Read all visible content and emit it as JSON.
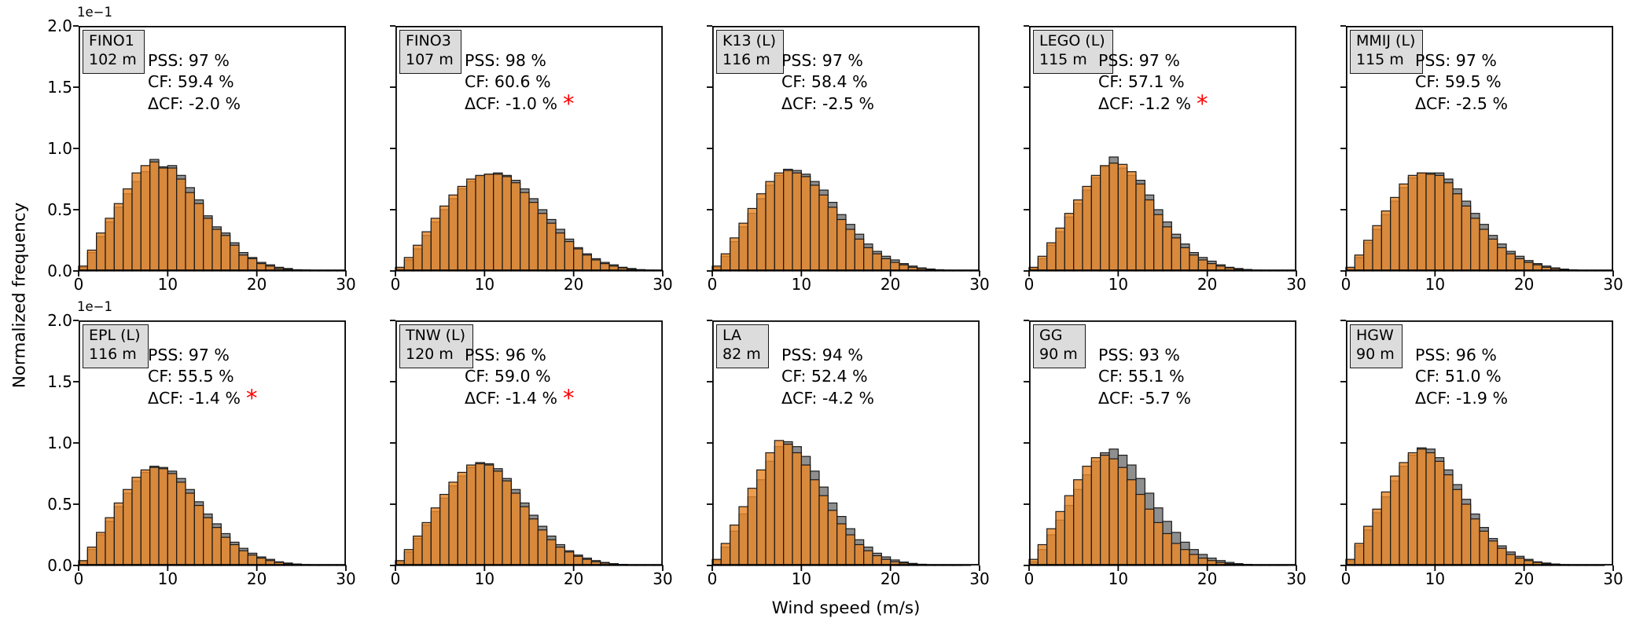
{
  "figure": {
    "xlabel": "Wind speed (m/s)",
    "ylabel": "Normalized frequency",
    "colors": {
      "orange_fill": "#E8872A",
      "gray_fill": "#8F8F8F",
      "bar_edge": "#1a1a1a",
      "asterisk_red": "#FF0000",
      "station_box_bg": "#DCDCDC"
    }
  },
  "chart_data": {
    "type": "bar",
    "subtype": "overlaid-histograms",
    "bin_start": 0,
    "bin_width": 1,
    "n_bins": 30,
    "xlim": [
      0,
      30
    ],
    "ylim": [
      0,
      2.0
    ],
    "xticks": [
      "0",
      "10",
      "20",
      "30"
    ],
    "yticks": [
      "0.0",
      "0.5",
      "1.0",
      "1.5",
      "2.0"
    ],
    "ytick_values": [
      0.0,
      0.5,
      1.0,
      1.5,
      2.0
    ],
    "y_offset_factor": "1e−1",
    "series_names": [
      "gray",
      "orange"
    ],
    "panels": [
      {
        "station": "FINO1",
        "height_label": "102 m",
        "pss": "PSS: 97 %",
        "cf": "CF: 59.4 %",
        "dcf": "ΔCF: -2.0 %",
        "asterisk": "",
        "gray": [
          0.03,
          0.15,
          0.28,
          0.4,
          0.52,
          0.63,
          0.73,
          0.81,
          0.91,
          0.85,
          0.86,
          0.78,
          0.68,
          0.58,
          0.45,
          0.36,
          0.31,
          0.23,
          0.15,
          0.11,
          0.07,
          0.05,
          0.03,
          0.02,
          0.01,
          0.008,
          0.005,
          0.003,
          0.002,
          0.001
        ],
        "orange": [
          0.04,
          0.17,
          0.31,
          0.43,
          0.55,
          0.67,
          0.8,
          0.86,
          0.89,
          0.84,
          0.84,
          0.75,
          0.64,
          0.55,
          0.43,
          0.34,
          0.29,
          0.21,
          0.13,
          0.1,
          0.06,
          0.04,
          0.02,
          0.015,
          0.009,
          0.006,
          0.004,
          0.002,
          0.001,
          0.001
        ]
      },
      {
        "station": "FINO3",
        "height_label": "107 m",
        "pss": "PSS: 98 %",
        "cf": "CF: 60.6 %",
        "dcf": "ΔCF: -1.0 %",
        "asterisk": "*",
        "gray": [
          0.02,
          0.09,
          0.18,
          0.29,
          0.4,
          0.5,
          0.59,
          0.67,
          0.73,
          0.77,
          0.79,
          0.8,
          0.78,
          0.74,
          0.67,
          0.59,
          0.5,
          0.42,
          0.34,
          0.26,
          0.19,
          0.14,
          0.1,
          0.07,
          0.05,
          0.03,
          0.02,
          0.011,
          0.007,
          0.004
        ],
        "orange": [
          0.03,
          0.11,
          0.21,
          0.32,
          0.43,
          0.53,
          0.62,
          0.69,
          0.75,
          0.78,
          0.79,
          0.79,
          0.77,
          0.72,
          0.64,
          0.56,
          0.47,
          0.39,
          0.31,
          0.24,
          0.18,
          0.13,
          0.09,
          0.06,
          0.04,
          0.025,
          0.015,
          0.009,
          0.005,
          0.003
        ]
      },
      {
        "station": "K13 (L)",
        "height_label": "116 m",
        "pss": "PSS: 97 %",
        "cf": "CF: 58.4 %",
        "dcf": "ΔCF: -2.5 %",
        "asterisk": "",
        "gray": [
          0.03,
          0.12,
          0.24,
          0.36,
          0.47,
          0.59,
          0.7,
          0.78,
          0.83,
          0.82,
          0.79,
          0.73,
          0.66,
          0.56,
          0.46,
          0.38,
          0.3,
          0.22,
          0.16,
          0.12,
          0.09,
          0.06,
          0.04,
          0.025,
          0.016,
          0.01,
          0.006,
          0.004,
          0.002,
          0.001
        ],
        "orange": [
          0.04,
          0.14,
          0.27,
          0.39,
          0.51,
          0.63,
          0.73,
          0.8,
          0.82,
          0.8,
          0.77,
          0.7,
          0.62,
          0.52,
          0.42,
          0.34,
          0.26,
          0.19,
          0.14,
          0.1,
          0.07,
          0.05,
          0.03,
          0.02,
          0.013,
          0.008,
          0.005,
          0.003,
          0.002,
          0.001
        ]
      },
      {
        "station": "LEGO (L)",
        "height_label": "115 m",
        "pss": "PSS: 97 %",
        "cf": "CF: 57.1 %",
        "dcf": "ΔCF: -1.2 %",
        "asterisk": "*",
        "gray": [
          0.02,
          0.1,
          0.21,
          0.32,
          0.44,
          0.55,
          0.66,
          0.76,
          0.85,
          0.93,
          0.84,
          0.78,
          0.74,
          0.62,
          0.5,
          0.4,
          0.3,
          0.22,
          0.15,
          0.11,
          0.08,
          0.05,
          0.03,
          0.02,
          0.012,
          0.007,
          0.004,
          0.002,
          0.001,
          0.001
        ],
        "orange": [
          0.03,
          0.12,
          0.23,
          0.35,
          0.47,
          0.58,
          0.69,
          0.78,
          0.86,
          0.88,
          0.87,
          0.81,
          0.71,
          0.58,
          0.46,
          0.36,
          0.27,
          0.19,
          0.13,
          0.09,
          0.06,
          0.04,
          0.025,
          0.015,
          0.009,
          0.005,
          0.003,
          0.002,
          0.001,
          0.001
        ]
      },
      {
        "station": "MMIJ (L)",
        "height_label": "115 m",
        "pss": "PSS: 97 %",
        "cf": "CF: 59.5 %",
        "dcf": "ΔCF: -2.5 %",
        "asterisk": "",
        "gray": [
          0.025,
          0.11,
          0.23,
          0.34,
          0.46,
          0.57,
          0.68,
          0.76,
          0.8,
          0.8,
          0.8,
          0.75,
          0.67,
          0.57,
          0.47,
          0.38,
          0.29,
          0.22,
          0.16,
          0.12,
          0.085,
          0.06,
          0.04,
          0.025,
          0.015,
          0.009,
          0.005,
          0.003,
          0.002,
          0.001
        ],
        "orange": [
          0.03,
          0.13,
          0.25,
          0.37,
          0.49,
          0.6,
          0.71,
          0.78,
          0.8,
          0.79,
          0.78,
          0.72,
          0.63,
          0.53,
          0.43,
          0.34,
          0.26,
          0.19,
          0.14,
          0.1,
          0.07,
          0.05,
          0.03,
          0.02,
          0.012,
          0.007,
          0.004,
          0.002,
          0.001,
          0.001
        ]
      },
      {
        "station": "EPL (L)",
        "height_label": "116 m",
        "pss": "PSS: 97 %",
        "cf": "CF: 55.5 %",
        "dcf": "ΔCF: -1.4 %",
        "asterisk": "*",
        "gray": [
          0.03,
          0.13,
          0.25,
          0.36,
          0.48,
          0.59,
          0.69,
          0.76,
          0.81,
          0.8,
          0.77,
          0.71,
          0.62,
          0.52,
          0.42,
          0.34,
          0.26,
          0.19,
          0.14,
          0.1,
          0.07,
          0.05,
          0.03,
          0.02,
          0.012,
          0.007,
          0.004,
          0.002,
          0.001,
          0.001
        ],
        "orange": [
          0.04,
          0.15,
          0.27,
          0.39,
          0.51,
          0.62,
          0.72,
          0.78,
          0.8,
          0.79,
          0.75,
          0.68,
          0.59,
          0.49,
          0.39,
          0.31,
          0.23,
          0.17,
          0.12,
          0.085,
          0.06,
          0.04,
          0.025,
          0.015,
          0.009,
          0.005,
          0.003,
          0.002,
          0.001,
          0.001
        ]
      },
      {
        "station": "TNW (L)",
        "height_label": "120 m",
        "pss": "PSS: 96 %",
        "cf": "CF: 59.0 %",
        "dcf": "ΔCF: -1.4 %",
        "asterisk": "*",
        "gray": [
          0.03,
          0.11,
          0.22,
          0.33,
          0.44,
          0.55,
          0.65,
          0.73,
          0.8,
          0.84,
          0.83,
          0.79,
          0.71,
          0.62,
          0.51,
          0.41,
          0.32,
          0.24,
          0.17,
          0.12,
          0.085,
          0.06,
          0.04,
          0.025,
          0.015,
          0.009,
          0.005,
          0.003,
          0.002,
          0.001
        ],
        "orange": [
          0.04,
          0.13,
          0.24,
          0.35,
          0.47,
          0.58,
          0.68,
          0.76,
          0.82,
          0.83,
          0.82,
          0.77,
          0.69,
          0.59,
          0.48,
          0.38,
          0.29,
          0.21,
          0.15,
          0.11,
          0.075,
          0.05,
          0.03,
          0.02,
          0.012,
          0.007,
          0.004,
          0.002,
          0.001,
          0.001
        ]
      },
      {
        "station": "LA",
        "height_label": "82 m",
        "pss": "PSS: 94 %",
        "cf": "CF: 52.4 %",
        "dcf": "ΔCF: -4.2 %",
        "asterisk": "",
        "gray": [
          0.04,
          0.15,
          0.28,
          0.42,
          0.56,
          0.7,
          0.85,
          0.97,
          1.01,
          0.97,
          0.89,
          0.77,
          0.64,
          0.51,
          0.4,
          0.3,
          0.21,
          0.15,
          0.1,
          0.07,
          0.045,
          0.028,
          0.017,
          0.01,
          0.006,
          0.003,
          0.002,
          0.001,
          0.001,
          0
        ],
        "orange": [
          0.05,
          0.18,
          0.33,
          0.48,
          0.63,
          0.78,
          0.92,
          1.02,
          0.99,
          0.92,
          0.82,
          0.7,
          0.57,
          0.45,
          0.34,
          0.25,
          0.17,
          0.12,
          0.08,
          0.05,
          0.03,
          0.02,
          0.012,
          0.007,
          0.004,
          0.002,
          0.001,
          0.001,
          0,
          0
        ]
      },
      {
        "station": "GG",
        "height_label": "90 m",
        "pss": "PSS: 93 %",
        "cf": "CF: 55.1 %",
        "dcf": "ΔCF: -5.7 %",
        "asterisk": "",
        "gray": [
          0.03,
          0.13,
          0.25,
          0.37,
          0.49,
          0.62,
          0.74,
          0.85,
          0.92,
          0.95,
          0.9,
          0.82,
          0.71,
          0.59,
          0.47,
          0.36,
          0.27,
          0.19,
          0.13,
          0.09,
          0.06,
          0.04,
          0.025,
          0.015,
          0.009,
          0.005,
          0.003,
          0.002,
          0.001,
          0.001
        ],
        "orange": [
          0.05,
          0.17,
          0.3,
          0.44,
          0.57,
          0.7,
          0.81,
          0.88,
          0.9,
          0.87,
          0.8,
          0.7,
          0.58,
          0.46,
          0.35,
          0.26,
          0.18,
          0.13,
          0.09,
          0.06,
          0.04,
          0.025,
          0.015,
          0.009,
          0.005,
          0.003,
          0.002,
          0.001,
          0.001,
          0
        ]
      },
      {
        "station": "HGW",
        "height_label": "90 m",
        "pss": "PSS: 96 %",
        "cf": "CF: 51.0 %",
        "dcf": "ΔCF: -1.9 %",
        "asterisk": "",
        "gray": [
          0.04,
          0.16,
          0.29,
          0.43,
          0.56,
          0.69,
          0.81,
          0.9,
          0.96,
          0.95,
          0.88,
          0.78,
          0.66,
          0.54,
          0.42,
          0.31,
          0.22,
          0.16,
          0.11,
          0.075,
          0.05,
          0.03,
          0.02,
          0.012,
          0.007,
          0.004,
          0.002,
          0.001,
          0.001,
          0
        ],
        "orange": [
          0.05,
          0.18,
          0.32,
          0.46,
          0.6,
          0.73,
          0.84,
          0.92,
          0.95,
          0.92,
          0.85,
          0.74,
          0.62,
          0.5,
          0.38,
          0.28,
          0.2,
          0.14,
          0.09,
          0.06,
          0.04,
          0.025,
          0.015,
          0.009,
          0.005,
          0.003,
          0.002,
          0.001,
          0.001,
          0
        ]
      }
    ]
  }
}
